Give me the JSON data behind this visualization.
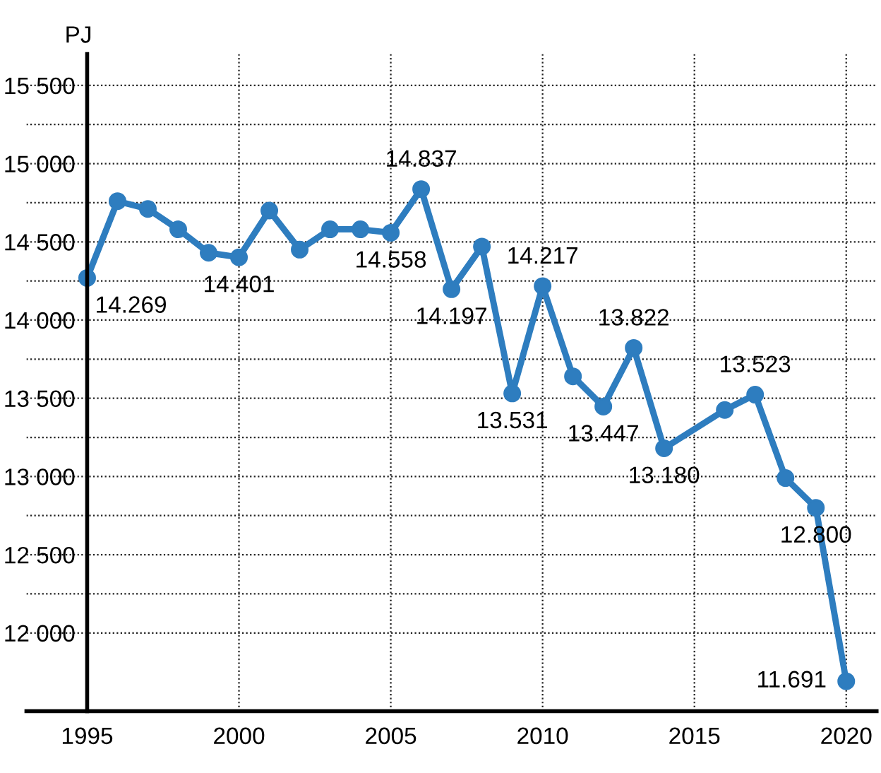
{
  "chart_data": {
    "type": "line",
    "ylabel": "PJ",
    "x": [
      1995,
      1996,
      1997,
      1998,
      1999,
      2000,
      2001,
      2002,
      2003,
      2004,
      2005,
      2006,
      2007,
      2008,
      2009,
      2010,
      2011,
      2012,
      2013,
      2014,
      2016,
      2017,
      2018,
      2019,
      2020
    ],
    "series": [
      {
        "color": "#2e7dbf",
        "values": [
          14269,
          14760,
          14710,
          14580,
          14430,
          14401,
          14700,
          14450,
          14580,
          14580,
          14558,
          14837,
          14197,
          14470,
          13531,
          14217,
          13640,
          13447,
          13822,
          13180,
          13425,
          13523,
          12990,
          12800,
          11691
        ],
        "value_labels": [
          "14.269",
          null,
          null,
          null,
          null,
          "14.401",
          null,
          null,
          null,
          null,
          "14.558",
          "14.837",
          "14.197",
          null,
          "13.531",
          "14.217",
          null,
          "13.447",
          "13.822",
          "13.180",
          null,
          "13.523",
          null,
          "12.800",
          "11.691"
        ]
      }
    ],
    "xlim": [
      1993,
      2021
    ],
    "xticks": [
      1995,
      2000,
      2005,
      2010,
      2015,
      2020
    ],
    "ylim": [
      11500,
      15700
    ],
    "yticks": [
      {
        "value": 12000,
        "label": "12 000"
      },
      {
        "value": 12250,
        "label": null
      },
      {
        "value": 12500,
        "label": "12 500"
      },
      {
        "value": 12750,
        "label": null
      },
      {
        "value": 13000,
        "label": "13 000"
      },
      {
        "value": 13250,
        "label": null
      },
      {
        "value": 13500,
        "label": "13 500"
      },
      {
        "value": 13750,
        "label": null
      },
      {
        "value": 14000,
        "label": "14 000"
      },
      {
        "value": 14250,
        "label": null
      },
      {
        "value": 14500,
        "label": "14 500"
      },
      {
        "value": 14750,
        "label": null
      },
      {
        "value": 15000,
        "label": "15 000"
      },
      {
        "value": 15250,
        "label": null
      },
      {
        "value": 15500,
        "label": "15 500"
      }
    ],
    "grid": true,
    "marker": "circle",
    "line_style": "solid",
    "legend": false
  }
}
